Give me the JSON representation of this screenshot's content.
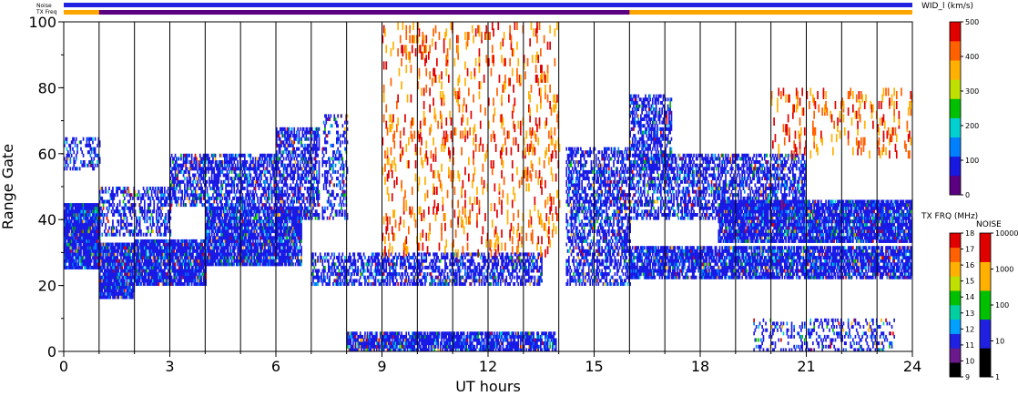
{
  "chart_data": {
    "type": "heatmap",
    "title": "",
    "xlabel": "UT hours",
    "ylabel": "Range Gate",
    "xlim": [
      0,
      24
    ],
    "ylim": [
      0,
      100
    ],
    "x_ticks": [
      "0",
      "3",
      "6",
      "9",
      "12",
      "15",
      "18",
      "21",
      "24"
    ],
    "y_ticks": [
      "0",
      "20",
      "40",
      "60",
      "80",
      "100"
    ],
    "vertical_gridlines_every_hours": 1,
    "top_bars": {
      "noise_label": "Noise",
      "txfreq_label": "TX Freq"
    },
    "colorbars": [
      {
        "name": "velocity_width",
        "label": "WID_l (km/s)",
        "min": 0,
        "max": 500,
        "ticks": [
          "0",
          "100",
          "200",
          "300",
          "400",
          "500"
        ],
        "colors": [
          "#5a0080",
          "#1818e0",
          "#0080ff",
          "#00d0d0",
          "#00c000",
          "#c0e000",
          "#ffb000",
          "#ff6000",
          "#e00000"
        ]
      },
      {
        "name": "tx_frequency",
        "label": "TX FRQ (MHz)",
        "ticks": [
          "9",
          "10",
          "11",
          "12",
          "13",
          "14",
          "15",
          "16",
          "17",
          "18"
        ],
        "colors": [
          "#000000",
          "#6a1a8a",
          "#2020e0",
          "#00a0ff",
          "#00d0a0",
          "#00c000",
          "#c0e000",
          "#ffb000",
          "#ff6000",
          "#e00000"
        ]
      },
      {
        "name": "noise",
        "label": "NOISE",
        "ticks": [
          "1",
          "10",
          "100",
          "1000",
          "10000"
        ],
        "colors": [
          "#000000",
          "#2020e0",
          "#00c000",
          "#ffb000",
          "#e00000"
        ]
      }
    ],
    "scatter_regions": [
      {
        "x0": 0.0,
        "x1": 1.0,
        "g0": 25,
        "g1": 45,
        "density": 0.95
      },
      {
        "x0": 0.0,
        "x1": 1.0,
        "g0": 55,
        "g1": 65,
        "density": 0.35
      },
      {
        "x0": 1.0,
        "x1": 2.0,
        "g0": 16,
        "g1": 33,
        "density": 0.9
      },
      {
        "x0": 1.0,
        "x1": 3.0,
        "g0": 35,
        "g1": 50,
        "density": 0.45
      },
      {
        "x0": 2.0,
        "x1": 4.0,
        "g0": 20,
        "g1": 34,
        "density": 0.9
      },
      {
        "x0": 3.0,
        "x1": 6.0,
        "g0": 44,
        "g1": 60,
        "density": 0.6
      },
      {
        "x0": 4.0,
        "x1": 6.7,
        "g0": 26,
        "g1": 44,
        "density": 0.85
      },
      {
        "x0": 6.0,
        "x1": 7.2,
        "g0": 40,
        "g1": 68,
        "density": 0.6
      },
      {
        "x0": 7.3,
        "x1": 8.0,
        "g0": 40,
        "g1": 72,
        "density": 0.35
      },
      {
        "x0": 7.0,
        "x1": 13.5,
        "g0": 20,
        "g1": 30,
        "density": 0.55
      },
      {
        "x0": 8.0,
        "x1": 13.9,
        "g0": 0,
        "g1": 6,
        "density": 0.8
      },
      {
        "x0": 14.2,
        "x1": 16.0,
        "g0": 20,
        "g1": 62,
        "density": 0.55
      },
      {
        "x0": 16.0,
        "x1": 17.2,
        "g0": 55,
        "g1": 78,
        "density": 0.55
      },
      {
        "x0": 16.0,
        "x1": 21.0,
        "g0": 40,
        "g1": 60,
        "density": 0.55
      },
      {
        "x0": 16.0,
        "x1": 24.0,
        "g0": 22,
        "g1": 32,
        "density": 0.8
      },
      {
        "x0": 18.5,
        "x1": 24.0,
        "g0": 33,
        "g1": 46,
        "density": 0.85
      },
      {
        "x0": 19.5,
        "x1": 23.5,
        "g0": 0,
        "g1": 10,
        "density": 0.25
      },
      {
        "x0": 20.0,
        "x1": 24.0,
        "g0": 60,
        "g1": 80,
        "density": 0.08
      },
      {
        "x0": 9.0,
        "x1": 14.0,
        "g0": 30,
        "g1": 100,
        "density": 0.07
      }
    ]
  }
}
